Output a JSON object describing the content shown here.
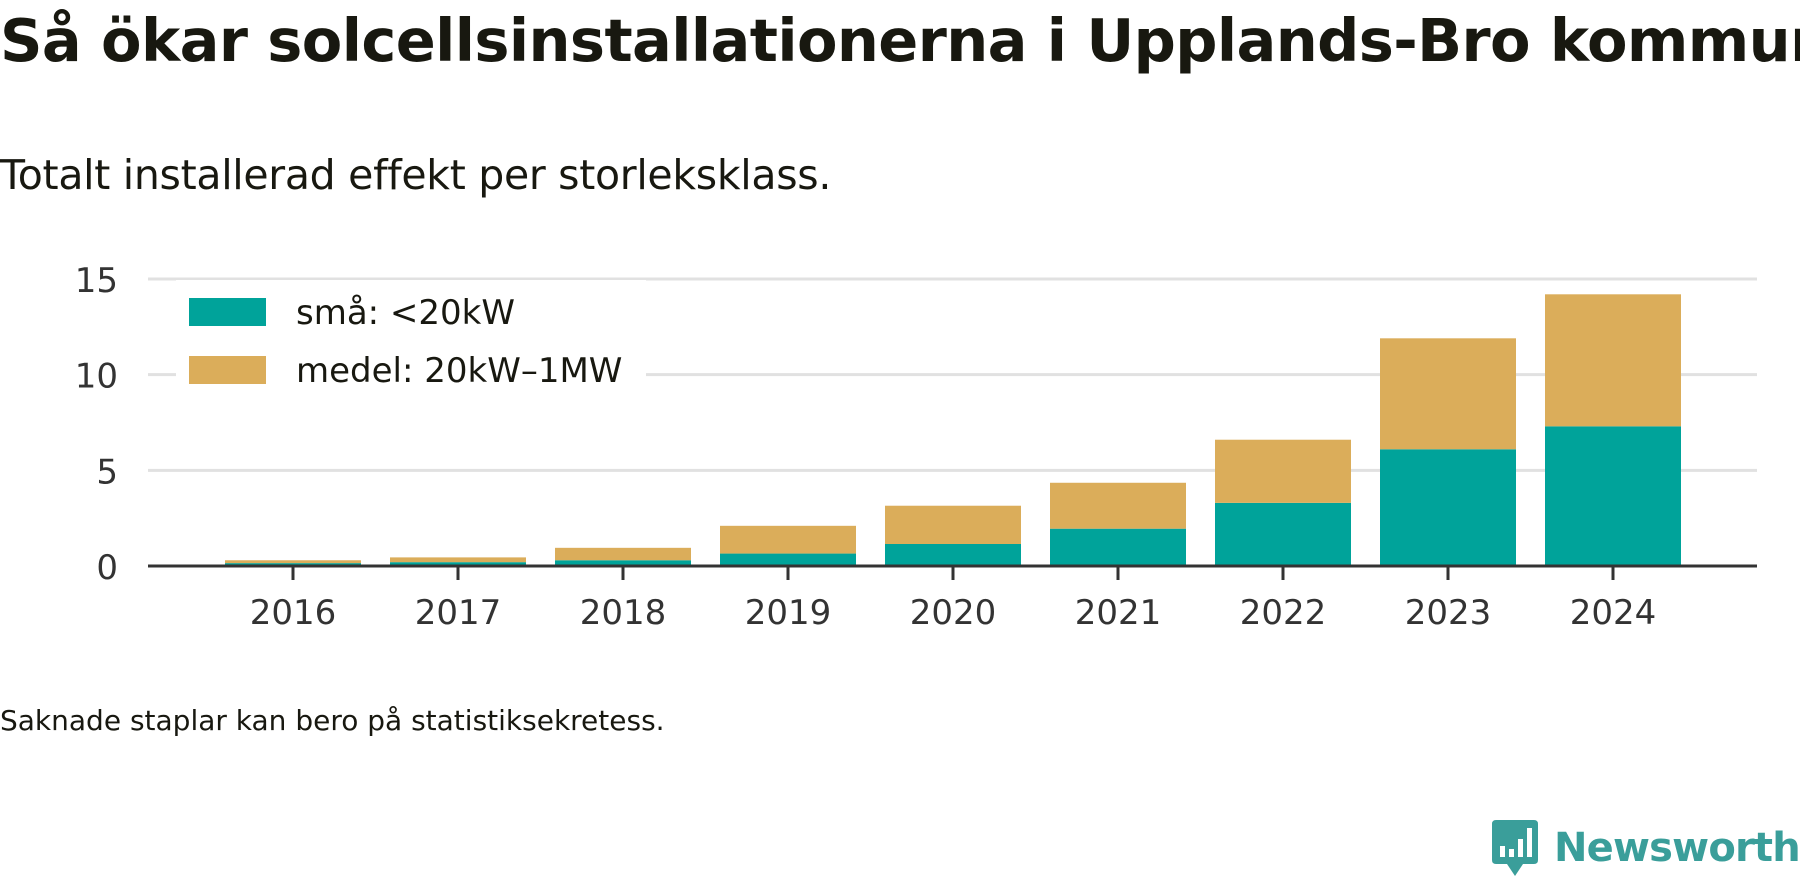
{
  "header": {
    "title": "Så ökar solcellsinstallationerna i Upplands-Bro kommun",
    "subtitle": "Totalt installerad effekt per storleksklass."
  },
  "footer": {
    "note": "Saknade staplar kan bero på statistiksekretess.",
    "brand": "Newsworthy",
    "brand_color": "#3a9e9a"
  },
  "chart_data": {
    "type": "bar",
    "stacked": true,
    "title": "Så ökar solcellsinstallationerna i Upplands-Bro kommun",
    "subtitle": "Totalt installerad effekt per storleksklass.",
    "xlabel": "",
    "ylabel": "",
    "categories": [
      "2016",
      "2017",
      "2018",
      "2019",
      "2020",
      "2021",
      "2022",
      "2023",
      "2024"
    ],
    "series": [
      {
        "name": "små: <20kW",
        "color": "#00a39a",
        "values": [
          0.15,
          0.2,
          0.3,
          0.65,
          1.15,
          1.95,
          3.3,
          6.1,
          7.3
        ]
      },
      {
        "name": "medel: 20kW–1MW",
        "color": "#dbad5a",
        "values": [
          0.15,
          0.25,
          0.65,
          1.45,
          2.0,
          2.4,
          3.3,
          5.8,
          6.9
        ]
      }
    ],
    "ylim": [
      0,
      15
    ],
    "yticks": [
      0,
      5,
      10,
      15
    ],
    "grid": true,
    "legend": "top-left"
  }
}
